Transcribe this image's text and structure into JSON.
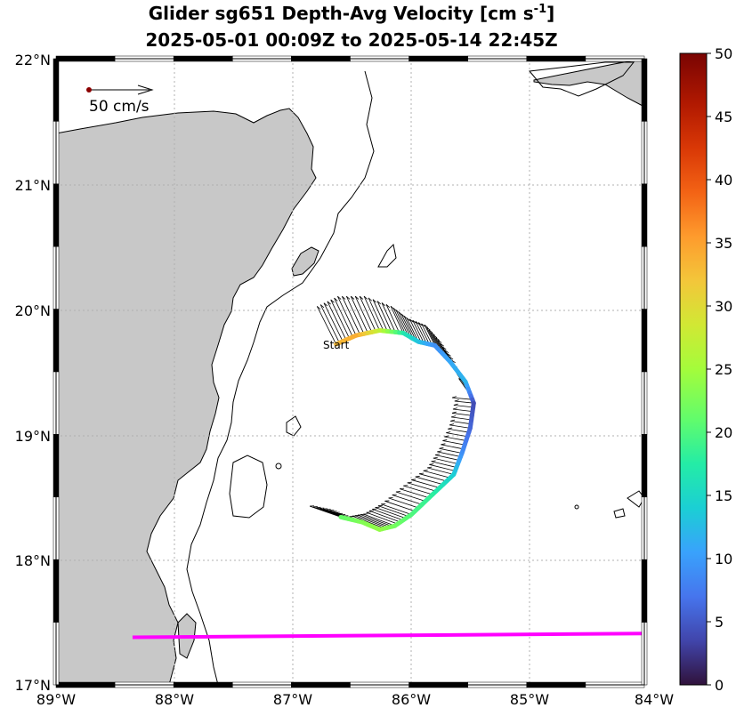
{
  "figure": {
    "title_line1": "Glider sg651 Depth-Avg Velocity [cm s",
    "title_exp": "-1",
    "title_line1_end": "]",
    "title_line2": "2025-05-01 00:09Z to 2025-05-14 22:45Z"
  },
  "map": {
    "lon_ticks": [
      "89°W",
      "88°W",
      "87°W",
      "86°W",
      "85°W",
      "84°W"
    ],
    "lat_ticks": [
      "17°N",
      "18°N",
      "19°N",
      "20°N",
      "21°N",
      "22°N"
    ],
    "scale_label": "50 cm/s",
    "start_label": "Start",
    "land_color": "#c8c8c8",
    "line_color": "#ff00ff"
  },
  "colorbar": {
    "ticks": [
      "0",
      "5",
      "10",
      "15",
      "20",
      "25",
      "30",
      "35",
      "40",
      "45",
      "50"
    ],
    "colormap": "turbo"
  },
  "chart_data": {
    "type": "map",
    "lon_range": [
      -89,
      -84
    ],
    "lat_range": [
      17,
      22
    ],
    "grid": true,
    "colorbar_range": [
      0,
      50
    ],
    "track": [
      {
        "lon": -86.62,
        "lat": 19.72,
        "speed": 33
      },
      {
        "lon": -86.45,
        "lat": 19.79,
        "speed": 34
      },
      {
        "lon": -86.25,
        "lat": 19.83,
        "speed": 27
      },
      {
        "lon": -86.05,
        "lat": 19.81,
        "speed": 17
      },
      {
        "lon": -85.92,
        "lat": 19.74,
        "speed": 13
      },
      {
        "lon": -85.78,
        "lat": 19.71,
        "speed": 9
      },
      {
        "lon": -85.65,
        "lat": 19.58,
        "speed": 11
      },
      {
        "lon": -85.52,
        "lat": 19.42,
        "speed": 12
      },
      {
        "lon": -85.45,
        "lat": 19.25,
        "speed": 4
      },
      {
        "lon": -85.48,
        "lat": 19.05,
        "speed": 6
      },
      {
        "lon": -85.55,
        "lat": 18.85,
        "speed": 9
      },
      {
        "lon": -85.62,
        "lat": 18.68,
        "speed": 14
      },
      {
        "lon": -85.8,
        "lat": 18.52,
        "speed": 18
      },
      {
        "lon": -85.98,
        "lat": 18.36,
        "speed": 20
      },
      {
        "lon": -86.12,
        "lat": 18.27,
        "speed": 22
      },
      {
        "lon": -86.25,
        "lat": 18.24,
        "speed": 24
      },
      {
        "lon": -86.4,
        "lat": 18.3,
        "speed": 23
      },
      {
        "lon": -86.58,
        "lat": 18.34,
        "speed": 21
      }
    ],
    "section_line": {
      "lon": [
        -88.35,
        -84.0
      ],
      "lat": [
        17.38,
        17.41
      ]
    }
  }
}
